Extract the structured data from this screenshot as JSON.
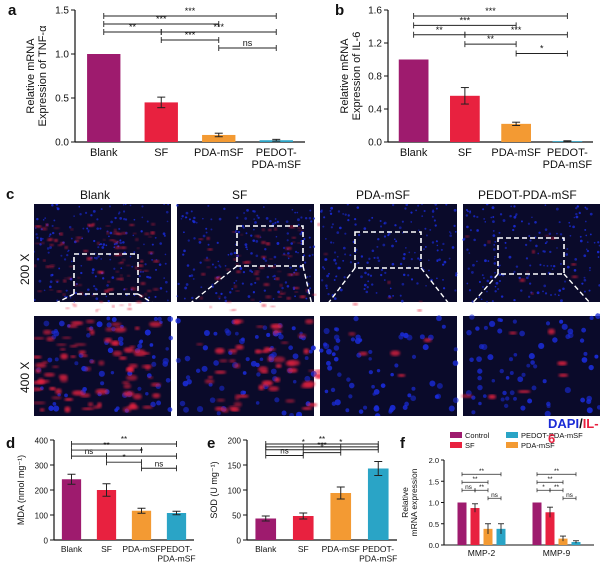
{
  "panel_labels": [
    "a",
    "b",
    "c",
    "d",
    "e",
    "f"
  ],
  "chart_data": [
    {
      "id": "a",
      "type": "bar",
      "ylabel": "Relative mRNA\nExpression of TNF-α",
      "categories": [
        "Blank",
        "SF",
        "PDA-mSF",
        "PEDOT-\nPDA-mSF"
      ],
      "values": [
        1.0,
        0.45,
        0.08,
        0.02
      ],
      "errors": [
        0.0,
        0.06,
        0.02,
        0.01
      ],
      "colors": [
        "#9e1b6e",
        "#e8213f",
        "#f39a33",
        "#2aa4c6"
      ],
      "ylim": [
        0,
        1.5
      ],
      "yticks": [
        0.0,
        0.5,
        1.0,
        1.5
      ],
      "brackets": [
        {
          "from": 0,
          "to": 3,
          "label": "***",
          "level": 4
        },
        {
          "from": 0,
          "to": 2,
          "label": "***",
          "level": 3
        },
        {
          "from": 0,
          "to": 1,
          "label": "**",
          "level": 2
        },
        {
          "from": 1,
          "to": 3,
          "label": "***",
          "level": 2
        },
        {
          "from": 1,
          "to": 2,
          "label": "***",
          "level": 1
        },
        {
          "from": 2,
          "to": 3,
          "label": "ns",
          "level": 0
        }
      ]
    },
    {
      "id": "b",
      "type": "bar",
      "ylabel": "Relative mRNA\nExpression of IL-6",
      "categories": [
        "Blank",
        "SF",
        "PDA-mSF",
        "PEDOT-\nPDA-mSF"
      ],
      "values": [
        1.0,
        0.56,
        0.22,
        0.01
      ],
      "errors": [
        0.0,
        0.1,
        0.02,
        0.005
      ],
      "colors": [
        "#9e1b6e",
        "#e8213f",
        "#f39a33",
        "#2aa4c6"
      ],
      "ylim": [
        0,
        1.6
      ],
      "yticks": [
        0.0,
        0.4,
        0.8,
        1.2,
        1.6
      ],
      "brackets": [
        {
          "from": 0,
          "to": 3,
          "label": "***",
          "level": 4
        },
        {
          "from": 0,
          "to": 2,
          "label": "***",
          "level": 3
        },
        {
          "from": 0,
          "to": 1,
          "label": "**",
          "level": 2
        },
        {
          "from": 1,
          "to": 3,
          "label": "***",
          "level": 2
        },
        {
          "from": 1,
          "to": 2,
          "label": "**",
          "level": 1
        },
        {
          "from": 2,
          "to": 3,
          "label": "*",
          "level": 0
        }
      ]
    },
    {
      "id": "d",
      "type": "bar",
      "ylabel": "MDA (nmol mg⁻¹)",
      "categories": [
        "Blank",
        "SF",
        "PDA-mSF",
        "PEDOT-\nPDA-mSF"
      ],
      "values": [
        243,
        200,
        117,
        108
      ],
      "errors": [
        20,
        25,
        10,
        7
      ],
      "colors": [
        "#9e1b6e",
        "#e8213f",
        "#f39a33",
        "#2aa4c6"
      ],
      "ylim": [
        0,
        400
      ],
      "yticks": [
        0,
        100,
        200,
        300,
        400
      ],
      "brackets": [
        {
          "from": 0,
          "to": 3,
          "label": "**",
          "level": 4
        },
        {
          "from": 0,
          "to": 2,
          "label": "**",
          "level": 3
        },
        {
          "from": 0,
          "to": 1,
          "label": "ns",
          "level": 2
        },
        {
          "from": 1,
          "to": 3,
          "label": "*",
          "level": 2
        },
        {
          "from": 1,
          "to": 2,
          "label": "*",
          "level": 1
        },
        {
          "from": 2,
          "to": 3,
          "label": "ns",
          "level": 0
        }
      ]
    },
    {
      "id": "e",
      "type": "bar",
      "ylabel": "SOD (U mg⁻¹)",
      "categories": [
        "Blank",
        "SF",
        "PDA-mSF",
        "PEDOT-\nPDA-mSF"
      ],
      "values": [
        43,
        48,
        94,
        143
      ],
      "errors": [
        5,
        6,
        12,
        14
      ],
      "colors": [
        "#9e1b6e",
        "#e8213f",
        "#f39a33",
        "#2aa4c6"
      ],
      "ylim": [
        0,
        200
      ],
      "yticks": [
        0,
        50,
        100,
        150,
        200
      ],
      "brackets": [
        {
          "from": 0,
          "to": 3,
          "label": "**",
          "level": 4
        },
        {
          "from": 0,
          "to": 2,
          "label": "*",
          "level": 3
        },
        {
          "from": 1,
          "to": 3,
          "label": "*",
          "level": 3
        },
        {
          "from": 0,
          "to": 3,
          "label": "***",
          "level": 2
        },
        {
          "from": 1,
          "to": 2,
          "label": "*",
          "level": 1
        },
        {
          "from": 0,
          "to": 1,
          "label": "ns",
          "level": 0
        }
      ]
    },
    {
      "id": "f",
      "type": "bar",
      "ylabel": "Relative\nmRNA expression",
      "categories": [
        "MMP-2",
        "MMP-9"
      ],
      "series": [
        {
          "name": "Control",
          "values": [
            1.0,
            1.0
          ],
          "errors": [
            0.0,
            0.0
          ],
          "color": "#9e1b6e"
        },
        {
          "name": "SF",
          "values": [
            0.87,
            0.77
          ],
          "errors": [
            0.1,
            0.12
          ],
          "color": "#e8213f"
        },
        {
          "name": "PDA-mSF",
          "values": [
            0.38,
            0.15
          ],
          "errors": [
            0.12,
            0.06
          ],
          "color": "#f39a33"
        },
        {
          "name": "PEDOT-PDA-mSF",
          "values": [
            0.38,
            0.07
          ],
          "errors": [
            0.12,
            0.03
          ],
          "color": "#2aa4c6"
        }
      ],
      "ylim": [
        0,
        2.0
      ],
      "yticks": [
        0.0,
        0.5,
        1.0,
        1.5,
        2.0
      ],
      "brackets": [
        {
          "group": 0,
          "from": 0,
          "to": 3,
          "label": "**",
          "level": 3
        },
        {
          "group": 0,
          "from": 0,
          "to": 2,
          "label": "**",
          "level": 2
        },
        {
          "group": 0,
          "from": 0,
          "to": 1,
          "label": "ns",
          "level": 1
        },
        {
          "group": 0,
          "from": 1,
          "to": 2,
          "label": "**",
          "level": 1
        },
        {
          "group": 0,
          "from": 2,
          "to": 3,
          "label": "ns",
          "level": 0
        },
        {
          "group": 1,
          "from": 0,
          "to": 3,
          "label": "**",
          "level": 3
        },
        {
          "group": 1,
          "from": 0,
          "to": 2,
          "label": "**",
          "level": 2
        },
        {
          "group": 1,
          "from": 0,
          "to": 1,
          "label": "*",
          "level": 1
        },
        {
          "group": 1,
          "from": 1,
          "to": 2,
          "label": "**",
          "level": 1
        },
        {
          "group": 1,
          "from": 2,
          "to": 3,
          "label": "ns",
          "level": 0
        }
      ],
      "legend_position": "top"
    }
  ],
  "micrographs": {
    "column_labels": [
      "Blank",
      "SF",
      "PDA-mSF",
      "PEDOT-PDA-mSF"
    ],
    "row_labels": [
      "200 X",
      "400 X"
    ],
    "stain_legend": {
      "dapi": "DAPI",
      "separator": "/",
      "il6": "IL-6"
    },
    "dapi_color": "#1a2bd6",
    "il6_color": "#e8213f",
    "red_intensity": [
      0.9,
      0.6,
      0.05,
      0.08
    ]
  }
}
